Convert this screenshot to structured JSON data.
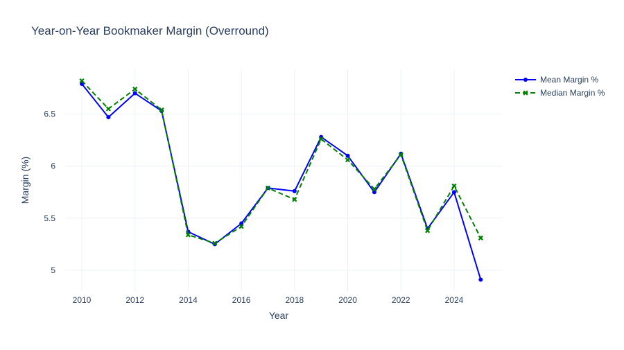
{
  "chart_data": {
    "type": "line",
    "title": "Year-on-Year Bookmaker Margin (Overround)",
    "xlabel": "Year",
    "ylabel": "Margin (%)",
    "xlim": [
      2009.4,
      2025.8
    ],
    "ylim": [
      4.8,
      6.93
    ],
    "x_ticks": [
      2010,
      2012,
      2014,
      2016,
      2018,
      2020,
      2022,
      2024
    ],
    "x_tick_labels": [
      "2010",
      "2012",
      "2014",
      "2016",
      "2018",
      "2020",
      "2022",
      "2024"
    ],
    "y_ticks": [
      5,
      5.5,
      6,
      6.5
    ],
    "y_tick_labels": [
      "5",
      "5.5",
      "6",
      "6.5"
    ],
    "grid": true,
    "legend_position": "top-right",
    "x": [
      2010,
      2011,
      2012,
      2013,
      2014,
      2015,
      2016,
      2017,
      2018,
      2019,
      2020,
      2021,
      2022,
      2023,
      2024,
      2025
    ],
    "series": [
      {
        "name": "Mean Margin %",
        "color": "#0000ff",
        "line_style": "solid",
        "marker": "circle",
        "values": [
          6.79,
          6.47,
          6.7,
          6.53,
          5.37,
          5.25,
          5.45,
          5.79,
          5.76,
          6.28,
          6.1,
          5.75,
          6.12,
          5.4,
          5.75,
          4.91
        ]
      },
      {
        "name": "Median Margin %",
        "color": "#008000",
        "line_style": "dash",
        "marker": "x",
        "values": [
          6.82,
          6.55,
          6.74,
          6.54,
          5.34,
          5.26,
          5.42,
          5.79,
          5.68,
          6.26,
          6.06,
          5.78,
          6.11,
          5.38,
          5.81,
          5.31
        ]
      }
    ]
  }
}
